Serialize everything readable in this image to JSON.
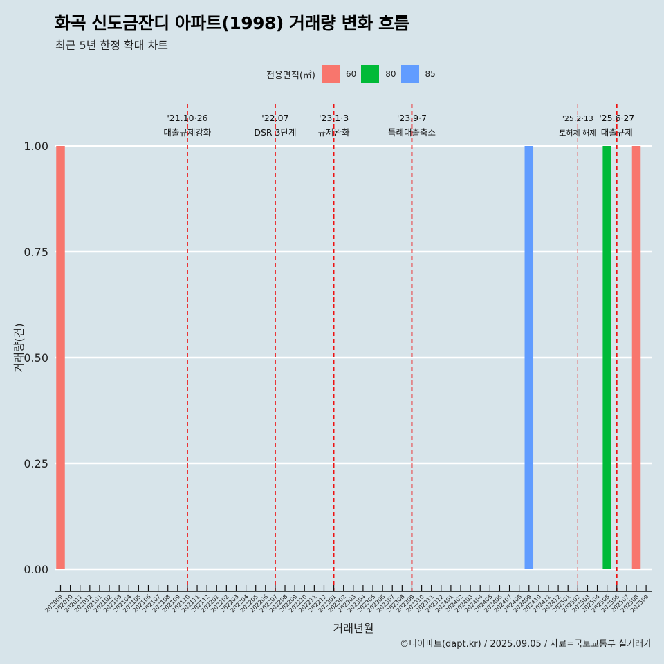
{
  "title": "화곡 신도금잔디 아파트(1998) 거래량 변화 흐름",
  "subtitle": "최근 5년 한정 확대 차트",
  "caption": "©디아파트(dapt.kr) / 2025.09.05 / 자료=국토교통부 실거래가",
  "legend": {
    "title": "전용면적(㎡)",
    "items": [
      {
        "label": "60",
        "color": "#f8766d"
      },
      {
        "label": "80",
        "color": "#00ba38"
      },
      {
        "label": "85",
        "color": "#619cff"
      }
    ]
  },
  "chart_data": {
    "type": "bar",
    "title": "화곡 신도금잔디 아파트(1998) 거래량 변화 흐름",
    "xlabel": "거래년월",
    "ylabel": "거래량(건)",
    "ylim": [
      0,
      1
    ],
    "yticks": [
      "0.00",
      "0.25",
      "0.50",
      "0.75",
      "1.00"
    ],
    "categories": [
      "202009",
      "202010",
      "202011",
      "202012",
      "202101",
      "202102",
      "202103",
      "202104",
      "202105",
      "202106",
      "202107",
      "202108",
      "202109",
      "202110",
      "202111",
      "202112",
      "202201",
      "202202",
      "202203",
      "202204",
      "202205",
      "202206",
      "202207",
      "202208",
      "202209",
      "202210",
      "202211",
      "202212",
      "202301",
      "202302",
      "202303",
      "202304",
      "202305",
      "202306",
      "202307",
      "202308",
      "202309",
      "202310",
      "202311",
      "202312",
      "202401",
      "202402",
      "202403",
      "202404",
      "202405",
      "202406",
      "202407",
      "202408",
      "202409",
      "202410",
      "202411",
      "202412",
      "202501",
      "202502",
      "202503",
      "202504",
      "202505",
      "202506",
      "202507",
      "202508",
      "202509"
    ],
    "bars": [
      {
        "month": "202009",
        "area": "60",
        "value": 1
      },
      {
        "month": "202409",
        "area": "85",
        "value": 1
      },
      {
        "month": "202505",
        "area": "80",
        "value": 1
      },
      {
        "month": "202508",
        "area": "60",
        "value": 1
      }
    ],
    "annotations": [
      {
        "month": "202110",
        "date": "'21.10·26",
        "label": "대출규제강화",
        "style": "bold"
      },
      {
        "month": "202207",
        "date": "'22.07",
        "label": "DSR 3단계",
        "style": "bold"
      },
      {
        "month": "202301",
        "date": "'23.1·3",
        "label": "규제완화",
        "style": "bold"
      },
      {
        "month": "202309",
        "date": "'23.9·7",
        "label": "특례대출축소",
        "style": "bold"
      },
      {
        "month": "202502",
        "date": "'25.2·13",
        "label": "토허제 해제",
        "style": "thin"
      },
      {
        "month": "202506",
        "date": "'25.6·27",
        "label": "대출규제",
        "style": "bold"
      }
    ]
  }
}
